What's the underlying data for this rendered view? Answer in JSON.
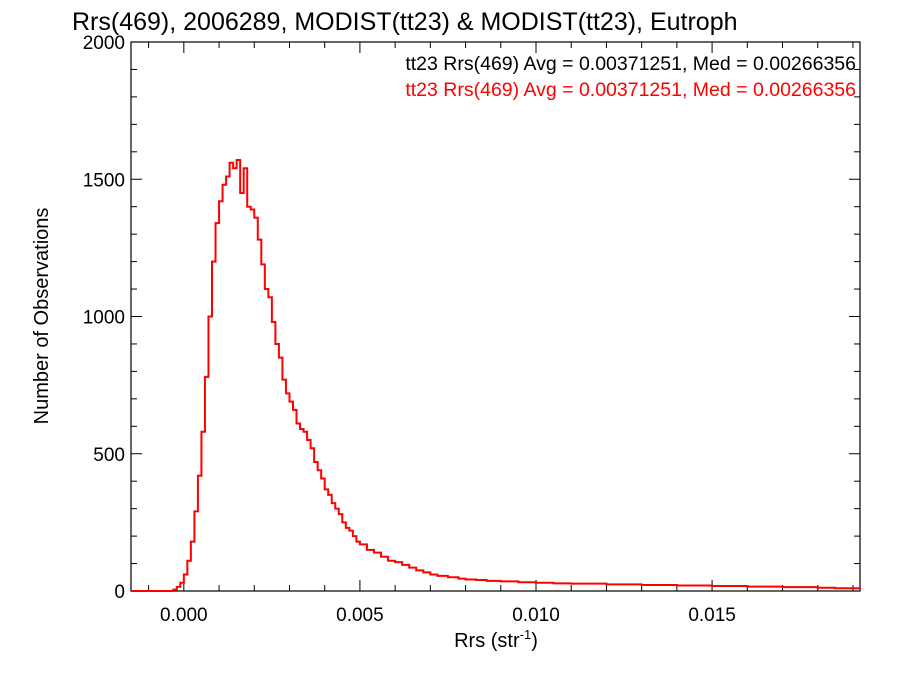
{
  "chart_data": {
    "type": "line",
    "title": "Rrs(469), 2006289, MODIST(tt23) & MODIST(tt23), Eutroph",
    "xlabel": "Rrs (str",
    "xlabel_sup": "-1",
    "xlabel_end": ")",
    "ylabel": "Number of Observations",
    "xlim": [
      -0.0015,
      0.0192
    ],
    "ylim": [
      0,
      2000
    ],
    "x_ticks": [
      {
        "value": 0.0,
        "label": "0.000"
      },
      {
        "value": 0.005,
        "label": "0.005"
      },
      {
        "value": 0.01,
        "label": "0.010"
      },
      {
        "value": 0.015,
        "label": "0.015"
      }
    ],
    "y_ticks": [
      {
        "value": 0,
        "label": "0"
      },
      {
        "value": 500,
        "label": "500"
      },
      {
        "value": 1000,
        "label": "1000"
      },
      {
        "value": 1500,
        "label": "1500"
      },
      {
        "value": 2000,
        "label": "2000"
      }
    ],
    "legend": [
      {
        "text": "tt23 Rrs(469) Avg = 0.00371251, Med = 0.00266356",
        "color": "#000000"
      },
      {
        "text": "tt23 Rrs(469) Avg = 0.00371251, Med = 0.00266356",
        "color": "#ff0000"
      }
    ],
    "legend_placement": "top-right",
    "series": [
      {
        "color": "#ff0000",
        "x": [
          -0.0015,
          -0.0005,
          -0.0003,
          -0.0002,
          -0.0001,
          0.0,
          0.0001,
          0.0002,
          0.0003,
          0.0004,
          0.0005,
          0.0006,
          0.0007,
          0.0008,
          0.0009,
          0.001,
          0.0011,
          0.0012,
          0.0013,
          0.0014,
          0.0015,
          0.0016,
          0.0017,
          0.0018,
          0.0019,
          0.002,
          0.0021,
          0.0022,
          0.0023,
          0.0024,
          0.0025,
          0.0026,
          0.0027,
          0.0028,
          0.0029,
          0.003,
          0.0031,
          0.0032,
          0.0033,
          0.0034,
          0.0035,
          0.0036,
          0.0037,
          0.0038,
          0.0039,
          0.004,
          0.0041,
          0.0042,
          0.0043,
          0.0044,
          0.0045,
          0.0046,
          0.0047,
          0.0048,
          0.0049,
          0.005,
          0.0052,
          0.0054,
          0.0056,
          0.0058,
          0.006,
          0.0062,
          0.0064,
          0.0066,
          0.0068,
          0.007,
          0.0072,
          0.0075,
          0.0078,
          0.008,
          0.0083,
          0.0086,
          0.009,
          0.0095,
          0.01,
          0.0105,
          0.011,
          0.012,
          0.013,
          0.014,
          0.015,
          0.016,
          0.017,
          0.018,
          0.0185,
          0.0192
        ],
        "y": [
          0,
          0,
          5,
          15,
          30,
          60,
          110,
          180,
          290,
          420,
          580,
          780,
          1000,
          1200,
          1340,
          1420,
          1480,
          1510,
          1560,
          1540,
          1570,
          1450,
          1540,
          1400,
          1390,
          1360,
          1280,
          1190,
          1100,
          1070,
          980,
          900,
          850,
          770,
          720,
          690,
          660,
          610,
          590,
          580,
          550,
          520,
          470,
          440,
          410,
          370,
          350,
          320,
          300,
          280,
          250,
          230,
          220,
          200,
          180,
          170,
          150,
          140,
          125,
          110,
          105,
          95,
          85,
          75,
          68,
          60,
          55,
          50,
          45,
          42,
          40,
          37,
          35,
          32,
          30,
          28,
          27,
          24,
          22,
          20,
          18,
          16,
          14,
          12,
          10,
          8
        ]
      }
    ]
  }
}
